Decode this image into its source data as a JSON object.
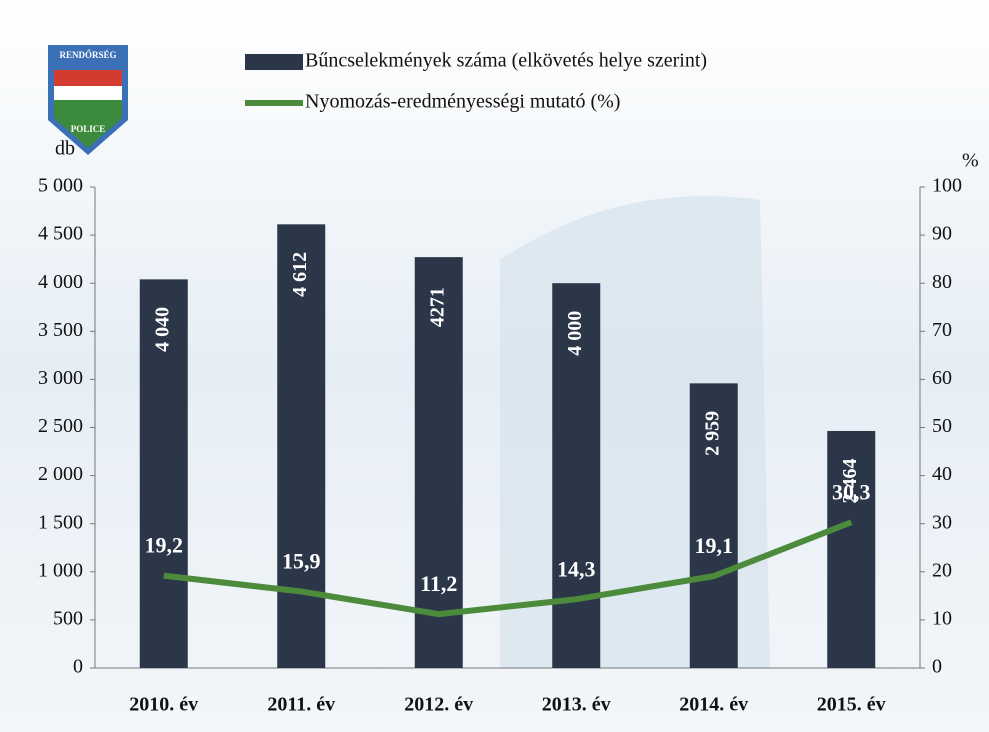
{
  "logo": {
    "top": "RENDŐRSÉG",
    "bottom": "POLICE"
  },
  "chart_data": {
    "type": "combo",
    "categories": [
      "2010. év",
      "2011. év",
      "2012. év",
      "2013. év",
      "2014. év",
      "2015. év"
    ],
    "series": [
      {
        "name": "Bűncselekmények száma (elkövetés helye szerint)",
        "type": "bar",
        "color": "#2b3648",
        "values": [
          4040,
          4612,
          4271,
          4000,
          2959,
          2464
        ],
        "value_labels": [
          "4 040",
          "4 612",
          "4271",
          "4 000",
          "2 959",
          "2 464"
        ]
      },
      {
        "name": "Nyomozás-eredményességi mutató (%)",
        "type": "line",
        "axis": "y2",
        "color": "#4b8b3b",
        "values": [
          19.2,
          15.9,
          11.2,
          14.3,
          19.1,
          30.3
        ],
        "value_labels": [
          "19,2",
          "15,9",
          "11,2",
          "14,3",
          "19,1",
          "30,3"
        ]
      }
    ],
    "ylabel": "db",
    "y2label": "%",
    "ylim": [
      0,
      5000
    ],
    "yticks": [
      0,
      500,
      {
        "value": 1000,
        "label": "1 000"
      },
      {
        "value": 1500,
        "label": "1 500"
      },
      {
        "value": 2000,
        "label": "2 000"
      },
      {
        "value": 2500,
        "label": "2 500"
      },
      {
        "value": 3000,
        "label": "3 000"
      },
      {
        "value": 3500,
        "label": "3 500"
      },
      {
        "value": 4000,
        "label": "4 000"
      },
      {
        "value": 4500,
        "label": "4 500"
      },
      {
        "value": 5000,
        "label": "5 000"
      }
    ],
    "y2lim": [
      0,
      100
    ],
    "y2ticks": [
      0,
      10,
      20,
      30,
      40,
      50,
      60,
      70,
      80,
      90,
      100
    ],
    "legend": "top"
  }
}
